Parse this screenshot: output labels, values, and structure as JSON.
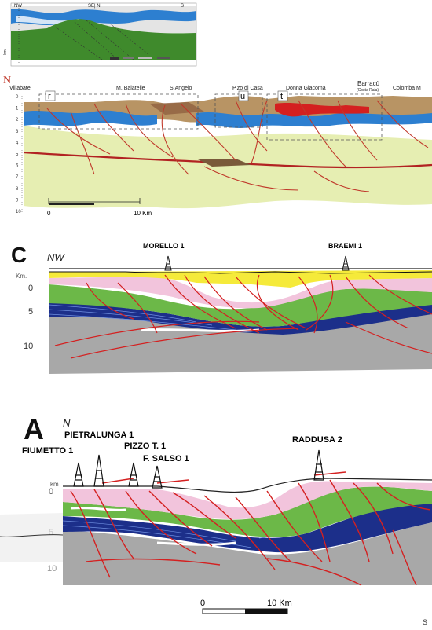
{
  "panel_top": {
    "labels": {
      "nw": "NW",
      "center": "SE| N",
      "s": "S",
      "axis_unit": "km"
    }
  },
  "panel_n": {
    "letter": "N",
    "localities": [
      "Villabate",
      "M. Balatelle",
      "S.Angelo",
      "P.zo di Casa",
      "Donna Giacoma",
      "Barracù",
      "(Costa Raia)",
      "Colomba M"
    ],
    "boxes": [
      "r",
      "u",
      "t"
    ],
    "depths": [
      "0",
      "1",
      "2",
      "3",
      "4",
      "5",
      "6",
      "7",
      "8",
      "9",
      "10"
    ],
    "scale": {
      "start": "0",
      "end": "10 Km"
    }
  },
  "panel_c": {
    "letter": "C",
    "direction": "NW",
    "wells": [
      "MORELLO 1",
      "BRAEMI 1"
    ],
    "depth_unit": "Km.",
    "depths": [
      "0",
      "5",
      "10"
    ]
  },
  "panel_a": {
    "letter": "A",
    "direction": "N",
    "wells": [
      "FIUMETTO 1",
      "PIETRALUNGA 1",
      "PIZZO T. 1",
      "F. SALSO 1",
      "RADDUSA 2"
    ],
    "depth_unit": "km",
    "depths": [
      "0",
      "5",
      "10"
    ],
    "scale": {
      "start": "0",
      "end": "10 Km"
    },
    "corner_text": "S"
  },
  "colors": {
    "basement_gray": "#a8a8a8",
    "green_unit": "#6cb848",
    "pink_unit": "#f2c4dc",
    "dark_blue_unit": "#1c2f8a",
    "blue_unit": "#3f86c9",
    "yellow_unit": "#f5ea3a",
    "pale_green": "#e6eeb2",
    "fault_red": "#d42020"
  }
}
